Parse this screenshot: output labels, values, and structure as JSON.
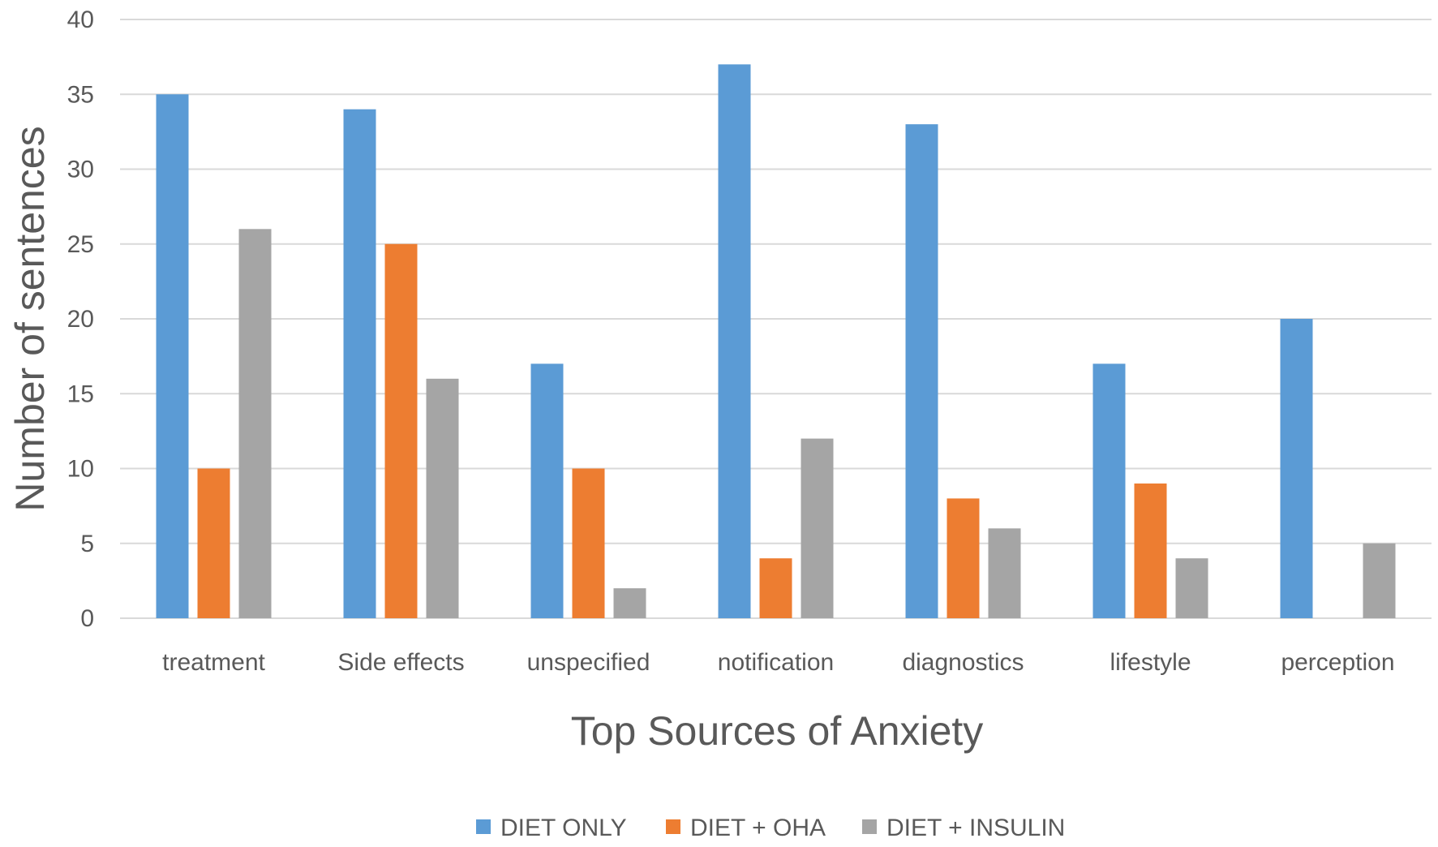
{
  "chart_data": {
    "type": "bar",
    "title": "",
    "xlabel": "Top Sources of Anxiety",
    "ylabel": "Number of sentences",
    "ylim": [
      0,
      40
    ],
    "yticks": [
      0,
      5,
      10,
      15,
      20,
      25,
      30,
      35,
      40
    ],
    "grid": true,
    "legend_position": "bottom",
    "categories": [
      "treatment",
      "Side effects",
      "unspecified",
      "notification",
      "diagnostics",
      "lifestyle",
      "perception"
    ],
    "series": [
      {
        "name": "DIET ONLY",
        "color": "#5B9BD5",
        "values": [
          35,
          34,
          17,
          37,
          33,
          17,
          20
        ]
      },
      {
        "name": "DIET + OHA",
        "color": "#ED7D31",
        "values": [
          10,
          25,
          10,
          4,
          8,
          9,
          0
        ]
      },
      {
        "name": "DIET + INSULIN",
        "color": "#A5A5A5",
        "values": [
          26,
          16,
          2,
          12,
          6,
          4,
          5
        ]
      }
    ]
  }
}
